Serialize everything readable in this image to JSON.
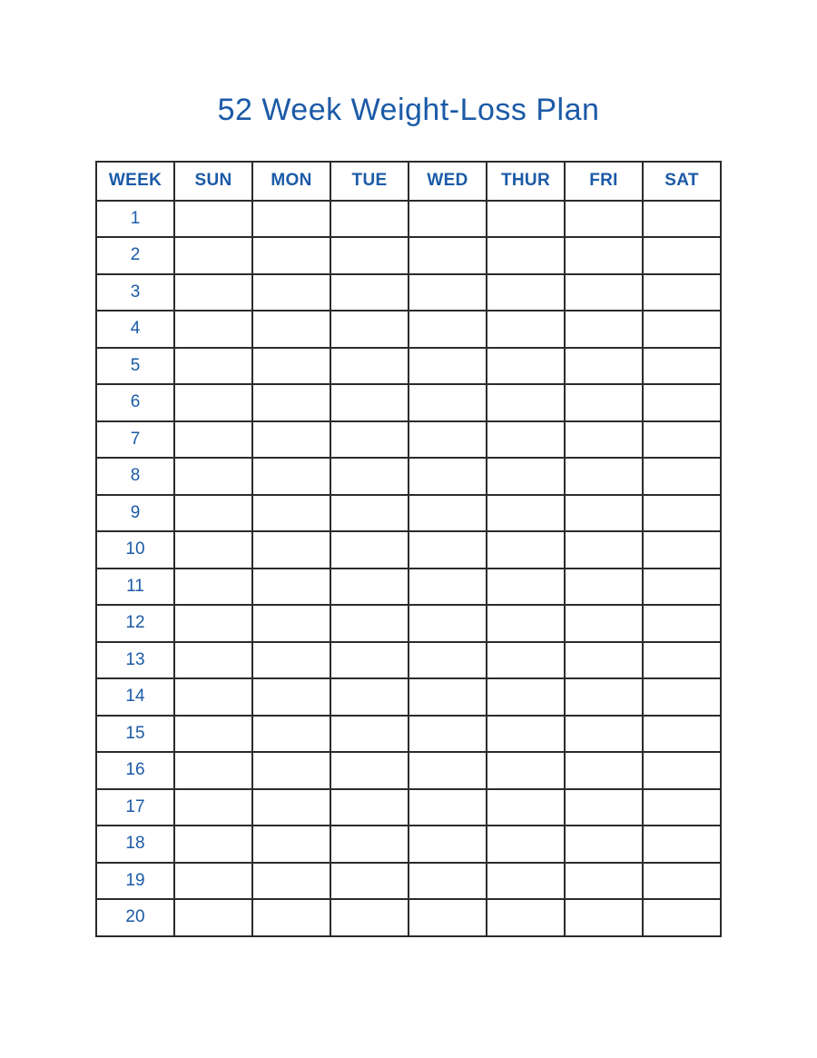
{
  "page": {
    "title": "52 Week Weight-Loss Plan"
  },
  "colors": {
    "accent_blue": "#1b5aa7",
    "grid_border": "#2b2b2b",
    "background": "#ffffff"
  },
  "table": {
    "headers": [
      "WEEK",
      "SUN",
      "MON",
      "TUE",
      "WED",
      "THUR",
      "FRI",
      "SAT"
    ],
    "rows": [
      {
        "week": "1"
      },
      {
        "week": "2"
      },
      {
        "week": "3"
      },
      {
        "week": "4"
      },
      {
        "week": "5"
      },
      {
        "week": "6"
      },
      {
        "week": "7"
      },
      {
        "week": "8"
      },
      {
        "week": "9"
      },
      {
        "week": "10"
      },
      {
        "week": "11"
      },
      {
        "week": "12"
      },
      {
        "week": "13"
      },
      {
        "week": "14"
      },
      {
        "week": "15"
      },
      {
        "week": "16"
      },
      {
        "week": "17"
      },
      {
        "week": "18"
      },
      {
        "week": "19"
      },
      {
        "week": "20"
      }
    ]
  }
}
